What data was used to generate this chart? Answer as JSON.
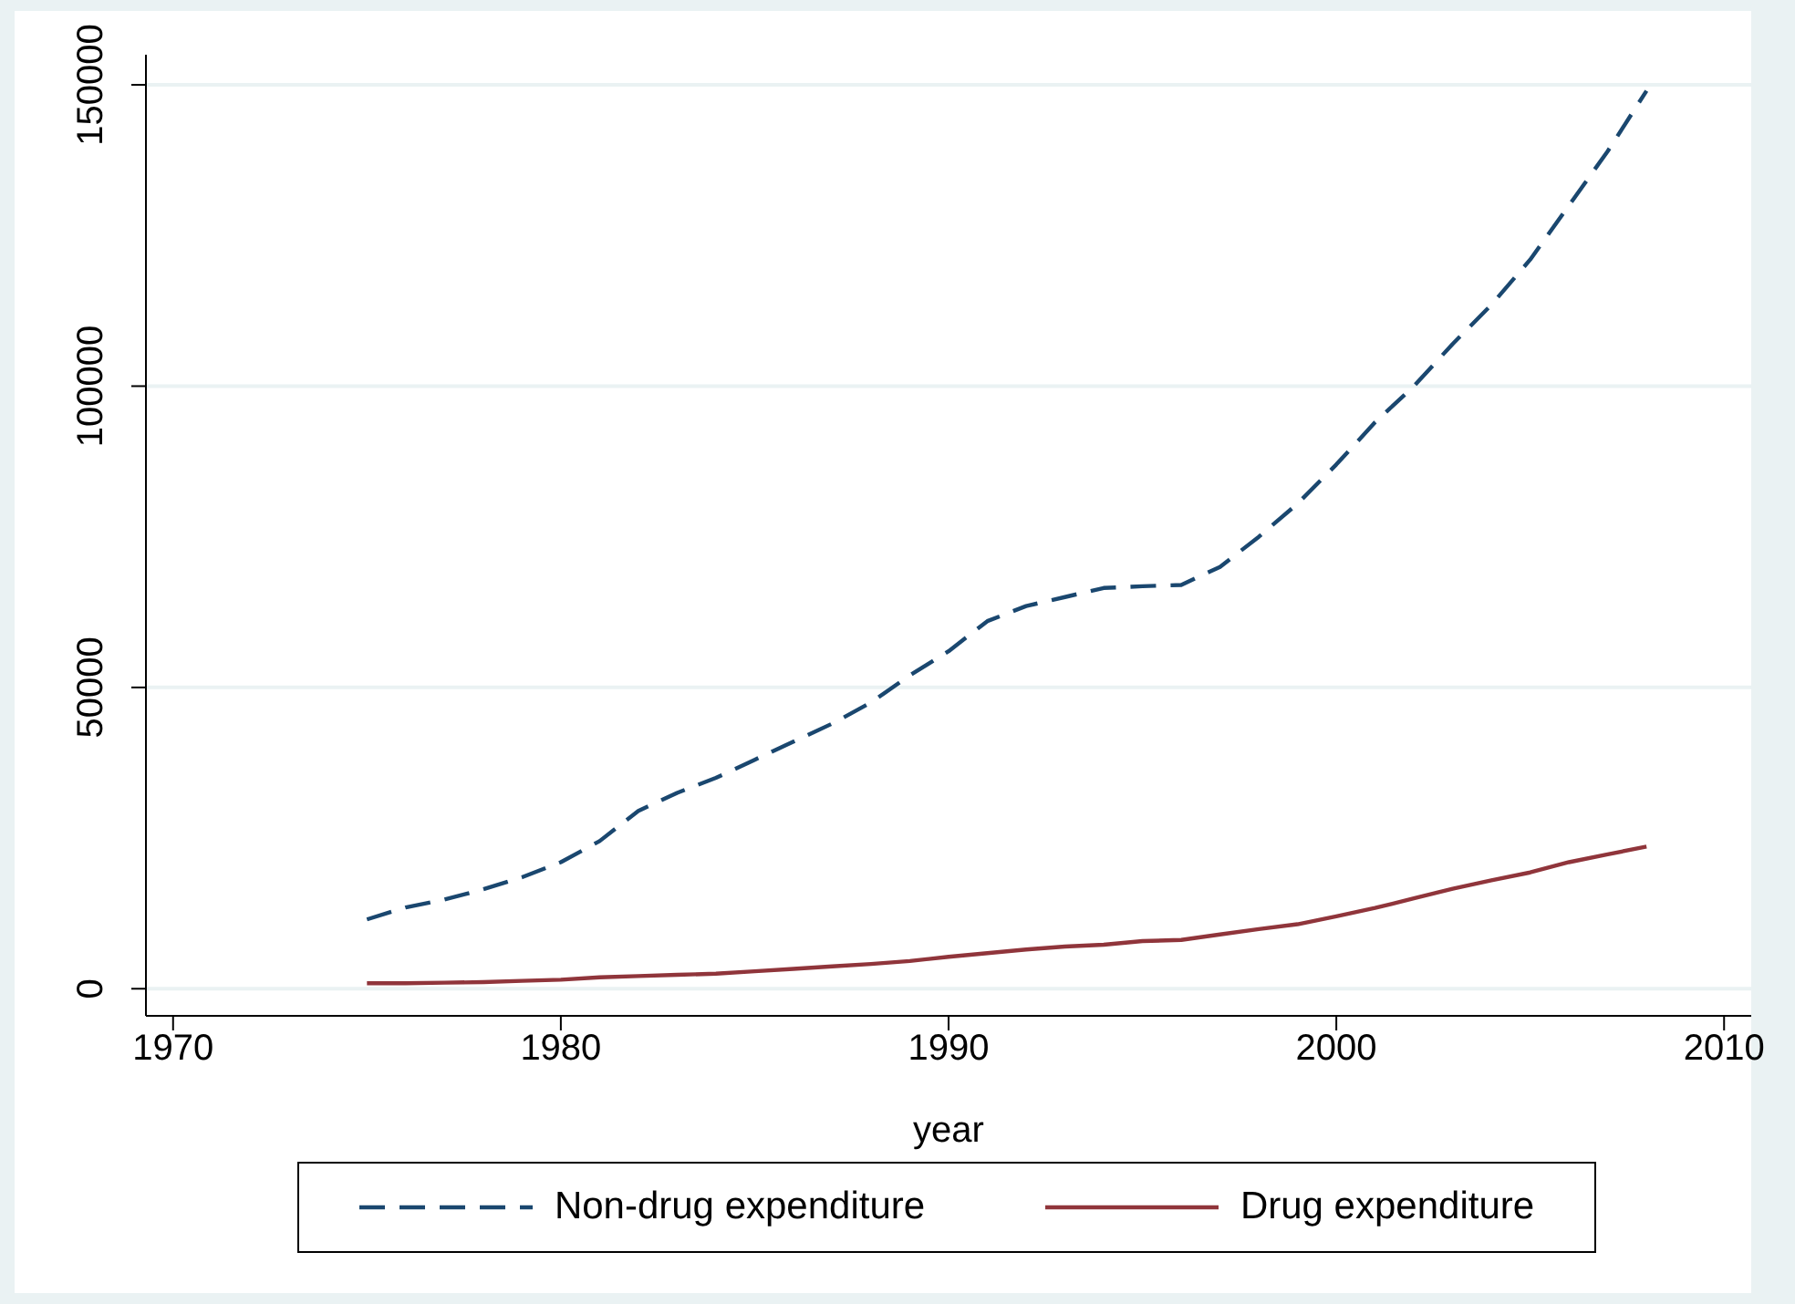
{
  "chart_data": {
    "type": "line",
    "xlabel": "year",
    "x": [
      1975,
      1976,
      1977,
      1978,
      1979,
      1980,
      1981,
      1982,
      1983,
      1984,
      1985,
      1986,
      1987,
      1988,
      1989,
      1990,
      1991,
      1992,
      1993,
      1994,
      1995,
      1996,
      1997,
      1998,
      1999,
      2000,
      2001,
      2002,
      2003,
      2004,
      2005,
      2006,
      2007,
      2008
    ],
    "series": [
      {
        "name": "Non-drug expenditure",
        "color": "#1a476f",
        "line_style": "dashed",
        "values": [
          11500,
          13500,
          14800,
          16500,
          18500,
          21000,
          24500,
          29500,
          32500,
          35000,
          38000,
          41000,
          44000,
          47500,
          52000,
          56000,
          61000,
          63500,
          65000,
          66500,
          66800,
          67000,
          70000,
          75000,
          80500,
          87000,
          94000,
          100000,
          107000,
          113500,
          121000,
          130000,
          139000,
          149000
        ]
      },
      {
        "name": "Drug expenditure",
        "color": "#90353b",
        "line_style": "solid",
        "values": [
          900,
          900,
          1000,
          1100,
          1300,
          1500,
          1900,
          2100,
          2300,
          2500,
          2900,
          3300,
          3700,
          4100,
          4600,
          5300,
          5900,
          6500,
          7000,
          7300,
          7900,
          8100,
          9000,
          9900,
          10700,
          12000,
          13400,
          15000,
          16600,
          18000,
          19300,
          21000,
          22300,
          23600
        ]
      }
    ],
    "xlim": [
      1969.3,
      2010.7
    ],
    "xticks": [
      1970,
      1980,
      1990,
      2000,
      2010
    ],
    "ylim": [
      -4500,
      155000
    ],
    "yticks": [
      0,
      50000,
      100000,
      150000
    ],
    "grid": "y",
    "legend": "bottom",
    "marker": "none"
  }
}
